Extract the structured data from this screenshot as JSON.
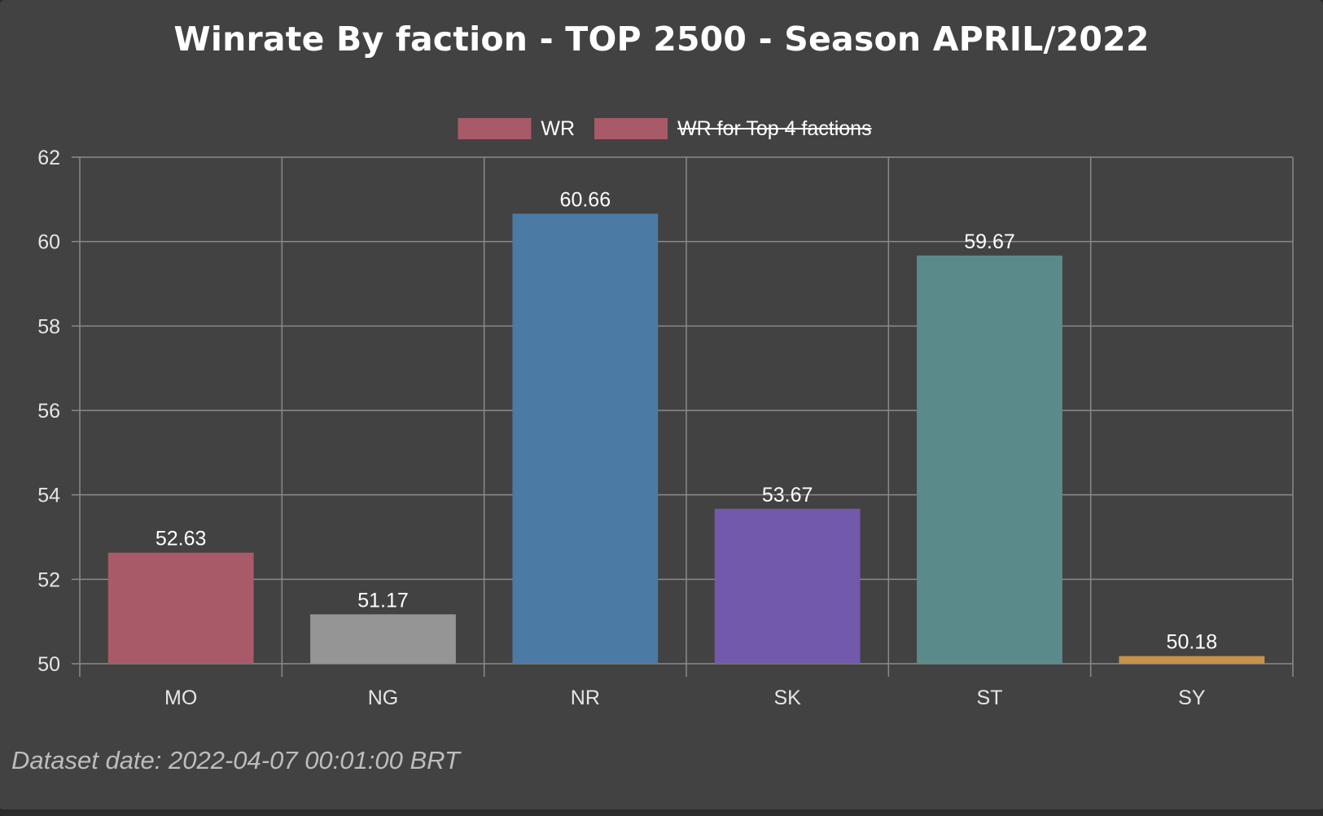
{
  "chart_data": {
    "type": "bar",
    "title": "Winrate By faction - TOP 2500 - Season APRIL/2022",
    "categories": [
      "MO",
      "NG",
      "NR",
      "SK",
      "ST",
      "SY"
    ],
    "series": [
      {
        "name": "WR",
        "values": [
          52.63,
          51.17,
          60.66,
          53.67,
          59.67,
          50.18
        ],
        "data_labels": [
          "52.63",
          "51.17",
          "60.66",
          "53.67",
          "59.67",
          "50.18"
        ],
        "colors": [
          "#a85a68",
          "#959595",
          "#4b7ba4",
          "#7359ab",
          "#5a8b8a",
          "#c89248"
        ]
      }
    ],
    "legend": [
      {
        "label": "WR",
        "color": "#a85a68",
        "hidden": false
      },
      {
        "label": "WR for Top 4 factions",
        "color": "#a85a68",
        "hidden": true
      }
    ],
    "legend_position": "top-center",
    "ylim": [
      50,
      62
    ],
    "y_ticks": [
      "50",
      "52",
      "54",
      "56",
      "58",
      "60",
      "62"
    ],
    "grid": true,
    "xlabel": "",
    "ylabel": ""
  },
  "footer": {
    "dataset_date": "Dataset date: 2022-04-07 00:01:00 BRT"
  },
  "colors": {
    "background": "#424242",
    "grid": "#8a8a8a",
    "text": "#ffffff",
    "axis_text": "#e6e6e6"
  }
}
